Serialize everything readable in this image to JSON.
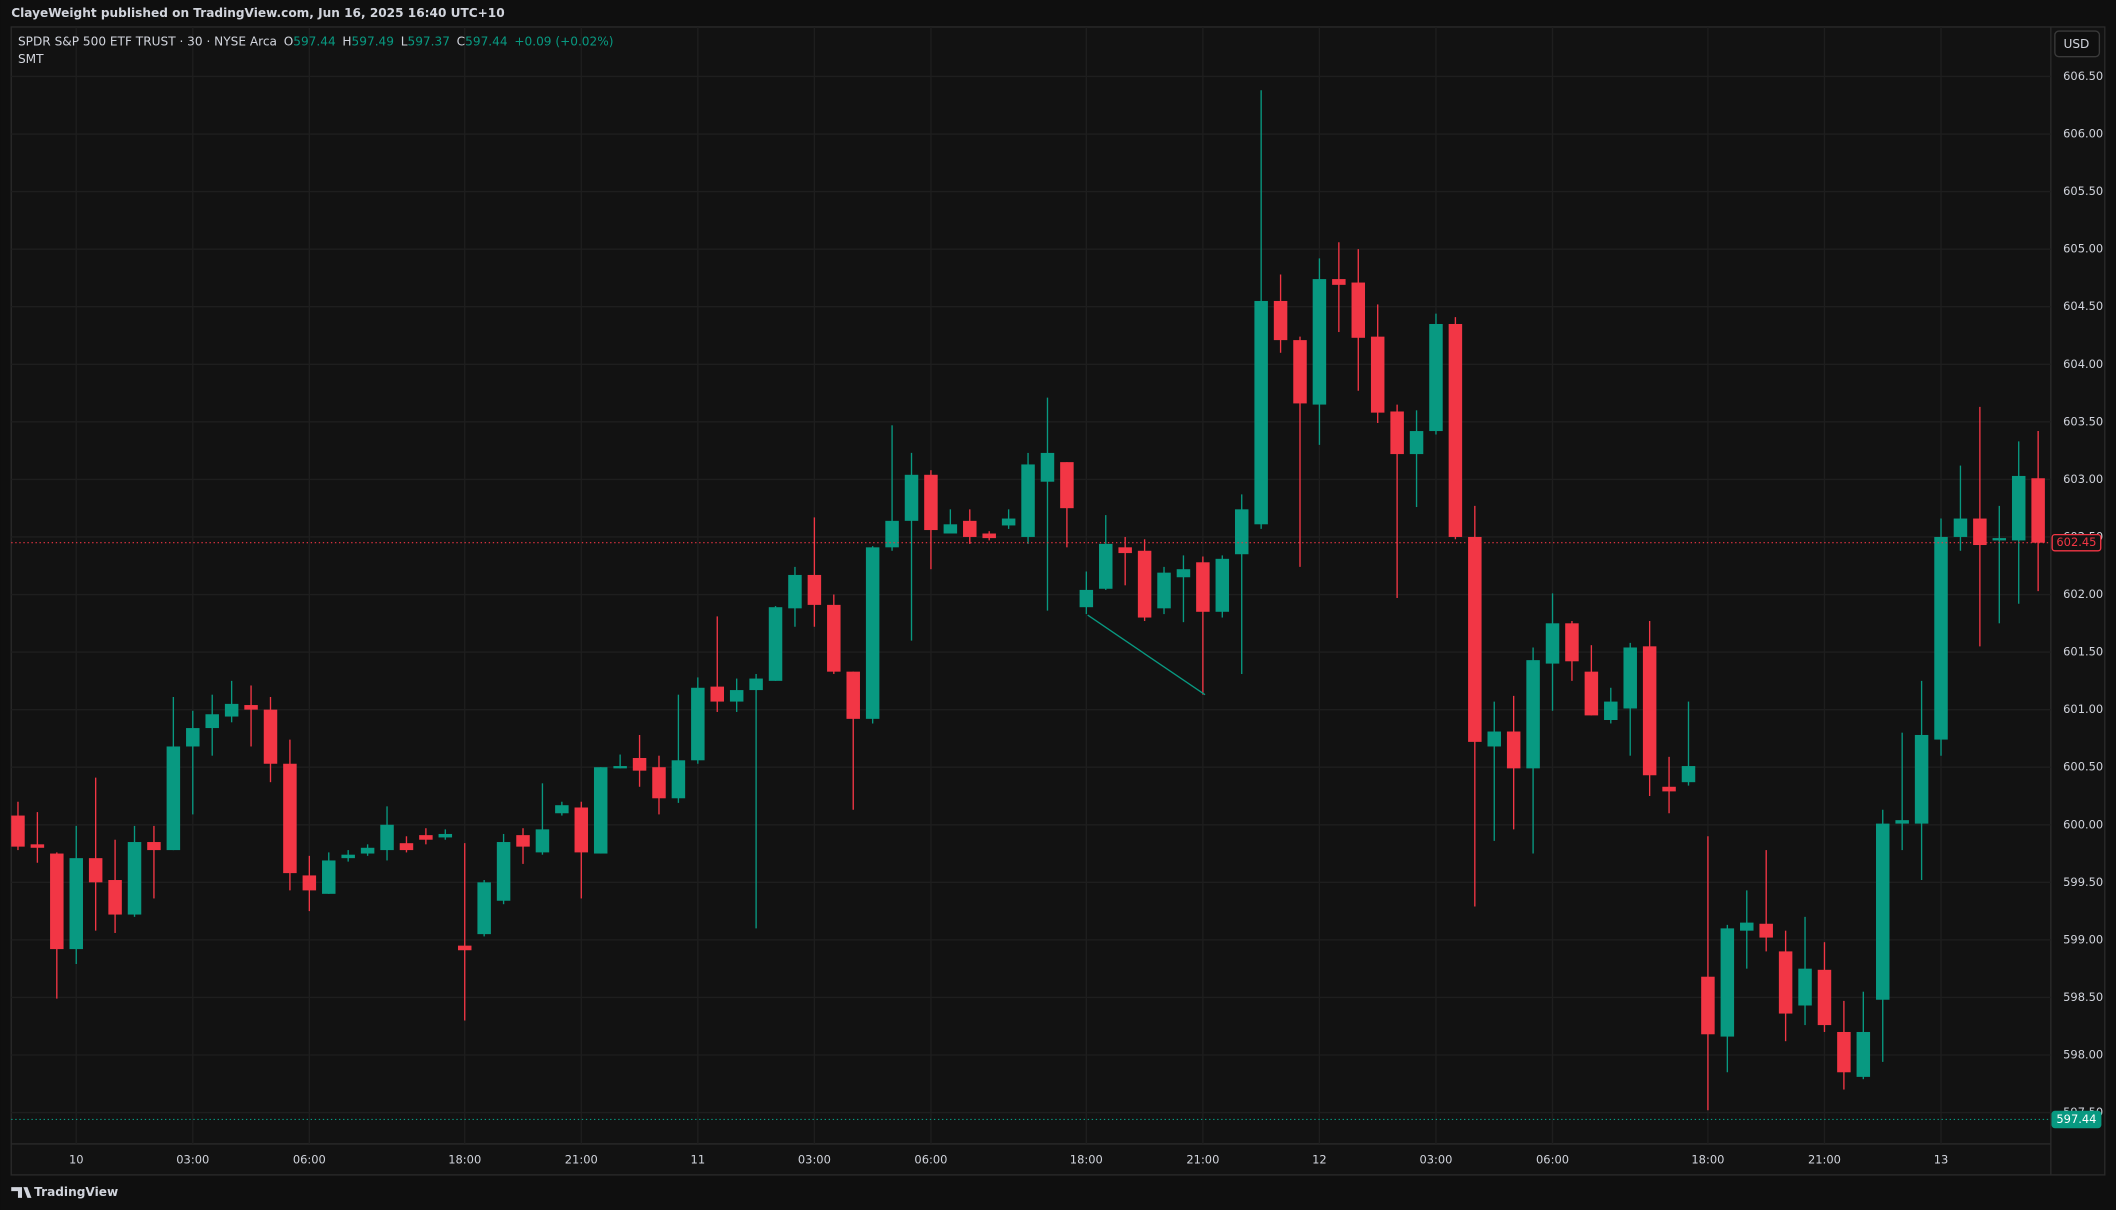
{
  "header": {
    "publisher": "ClayeWeight published on TradingView.com, Jun 16, 2025 16:40 UTC+10",
    "brand": "TradingView"
  },
  "chart_data": {
    "type": "candlestick",
    "symbol": "SPDR S&P 500 ETF TRUST · 30 · NYSE Arca",
    "ohlc_legend": [
      {
        "label": "O",
        "value": 597.44
      },
      {
        "label": "H",
        "value": 597.49
      },
      {
        "label": "L",
        "value": 597.37
      },
      {
        "label": "C",
        "value": 597.44
      }
    ],
    "change": "+0.09 (+0.02%)",
    "indicator": "SMT",
    "currency": "USD",
    "up_color": "#089981",
    "down_color": "#f23645",
    "grid": true,
    "categories": [
      null,
      null,
      null,
      "10",
      null,
      null,
      null,
      null,
      null,
      "03:00",
      null,
      null,
      null,
      null,
      null,
      "06:00",
      null,
      null,
      null,
      null,
      null,
      null,
      null,
      "18:00",
      null,
      null,
      null,
      null,
      null,
      "21:00",
      null,
      null,
      null,
      null,
      null,
      "11",
      null,
      null,
      null,
      null,
      null,
      "03:00",
      null,
      null,
      null,
      null,
      null,
      "06:00",
      null,
      null,
      null,
      null,
      null,
      null,
      null,
      "18:00",
      null,
      null,
      null,
      null,
      null,
      "21:00",
      null,
      null,
      null,
      null,
      null,
      "12",
      null,
      null,
      null,
      null,
      null,
      "03:00",
      null,
      null,
      null,
      null,
      null,
      "06:00",
      null,
      null,
      null,
      null,
      null,
      null,
      null,
      "18:00",
      null,
      null,
      null,
      null,
      null,
      "21:00",
      null,
      null,
      null,
      null,
      null,
      "13",
      null,
      null,
      null,
      null,
      null
    ],
    "open": [
      600.08,
      599.83,
      599.75,
      598.92,
      599.71,
      599.52,
      599.22,
      599.85,
      599.78,
      600.68,
      600.84,
      600.94,
      601.04,
      601.0,
      600.53,
      599.56,
      599.4,
      599.71,
      599.75,
      599.78,
      599.84,
      599.91,
      599.89,
      598.95,
      599.05,
      599.34,
      599.91,
      599.76,
      600.1,
      600.15,
      599.75,
      600.49,
      600.58,
      600.5,
      600.23,
      600.56,
      601.2,
      601.07,
      601.17,
      601.25,
      601.88,
      602.17,
      601.91,
      601.33,
      600.92,
      602.41,
      602.64,
      603.04,
      602.53,
      602.64,
      602.53,
      602.6,
      602.5,
      602.98,
      603.15,
      601.89,
      602.05,
      602.41,
      602.38,
      601.88,
      602.15,
      602.28,
      601.85,
      602.35,
      602.61,
      604.55,
      604.21,
      603.65,
      604.74,
      604.71,
      604.24,
      603.59,
      603.22,
      603.42,
      604.35,
      602.5,
      600.68,
      600.81,
      600.49,
      601.4,
      601.75,
      601.33,
      600.91,
      601.01,
      601.55,
      600.33,
      600.37,
      598.68,
      598.16,
      599.08,
      599.14,
      598.9,
      598.43,
      598.74,
      598.2,
      597.81,
      598.48,
      600.01,
      600.01,
      600.74,
      602.5,
      602.66,
      602.47,
      602.47,
      603.01
    ],
    "high": [
      600.2,
      600.11,
      599.76,
      599.99,
      600.41,
      599.87,
      599.99,
      599.99,
      601.11,
      600.99,
      601.13,
      601.25,
      601.21,
      601.11,
      600.74,
      599.73,
      599.76,
      599.78,
      599.83,
      600.16,
      599.9,
      599.97,
      599.96,
      599.84,
      599.52,
      599.92,
      599.97,
      600.36,
      600.2,
      600.2,
      600.5,
      600.61,
      600.78,
      600.6,
      601.13,
      601.28,
      601.81,
      601.27,
      601.31,
      601.9,
      602.24,
      602.67,
      602.0,
      601.33,
      602.42,
      603.47,
      603.23,
      603.08,
      602.74,
      602.74,
      602.55,
      602.74,
      603.23,
      603.71,
      603.15,
      602.2,
      602.69,
      602.5,
      602.48,
      602.24,
      602.34,
      602.33,
      602.34,
      602.87,
      606.38,
      604.78,
      604.24,
      604.92,
      605.06,
      605.0,
      604.52,
      603.65,
      603.6,
      604.44,
      604.41,
      602.77,
      601.07,
      601.12,
      601.54,
      602.01,
      601.77,
      601.56,
      601.19,
      601.58,
      601.77,
      600.59,
      601.07,
      599.9,
      599.13,
      599.43,
      599.78,
      599.08,
      599.2,
      598.98,
      598.47,
      598.55,
      600.13,
      600.8,
      601.25,
      602.66,
      603.12,
      603.63,
      602.77,
      603.33,
      603.42
    ],
    "low": [
      599.78,
      599.67,
      598.49,
      598.79,
      599.08,
      599.06,
      599.2,
      599.36,
      599.78,
      600.09,
      600.6,
      600.89,
      600.68,
      600.37,
      599.43,
      599.25,
      599.4,
      599.68,
      599.73,
      599.69,
      599.76,
      599.83,
      599.87,
      598.3,
      599.03,
      599.31,
      599.66,
      599.74,
      600.08,
      599.36,
      599.75,
      600.49,
      600.33,
      600.09,
      600.19,
      600.53,
      600.98,
      600.98,
      599.1,
      601.25,
      601.72,
      601.72,
      601.31,
      600.13,
      600.88,
      602.38,
      601.6,
      602.22,
      602.53,
      602.44,
      602.47,
      602.57,
      602.44,
      601.86,
      602.41,
      601.83,
      602.04,
      602.08,
      601.77,
      601.83,
      601.76,
      601.13,
      601.8,
      601.31,
      602.57,
      604.1,
      602.24,
      603.3,
      604.28,
      603.77,
      603.49,
      601.97,
      602.76,
      603.39,
      602.48,
      599.29,
      599.86,
      599.96,
      599.75,
      600.99,
      601.25,
      600.95,
      600.88,
      600.6,
      600.25,
      600.1,
      600.34,
      597.52,
      597.85,
      598.75,
      598.9,
      598.12,
      598.26,
      598.2,
      597.7,
      597.79,
      597.94,
      599.78,
      599.52,
      600.6,
      602.38,
      601.55,
      601.75,
      601.92,
      602.03
    ],
    "close": [
      599.81,
      599.8,
      598.92,
      599.71,
      599.5,
      599.22,
      599.85,
      599.78,
      600.68,
      600.84,
      600.96,
      601.05,
      601.0,
      600.53,
      599.58,
      599.43,
      599.69,
      599.74,
      599.8,
      600.0,
      599.78,
      599.87,
      599.92,
      598.91,
      599.5,
      599.85,
      599.81,
      599.96,
      600.17,
      599.76,
      600.5,
      600.51,
      600.47,
      600.23,
      600.56,
      601.19,
      601.07,
      601.17,
      601.27,
      601.89,
      602.17,
      601.91,
      601.33,
      600.92,
      602.41,
      602.64,
      603.04,
      602.56,
      602.61,
      602.5,
      602.49,
      602.66,
      603.13,
      603.23,
      602.75,
      602.04,
      602.44,
      602.36,
      601.8,
      602.19,
      602.22,
      601.85,
      602.31,
      602.74,
      604.55,
      604.21,
      603.66,
      604.74,
      604.69,
      604.23,
      603.58,
      603.22,
      603.42,
      604.35,
      602.5,
      600.72,
      600.81,
      600.49,
      601.43,
      601.75,
      601.42,
      600.95,
      601.07,
      601.54,
      600.43,
      600.29,
      600.51,
      598.18,
      599.1,
      599.15,
      599.02,
      598.36,
      598.75,
      598.26,
      597.85,
      598.2,
      600.01,
      600.04,
      600.78,
      602.5,
      602.66,
      602.43,
      602.49,
      603.03,
      602.45
    ],
    "ylim": [
      596.97,
      606.93
    ],
    "yticks": [
      {
        "value": 597.5,
        "label": "597.50"
      },
      {
        "value": 598,
        "label": "598.00"
      },
      {
        "value": 598.5,
        "label": "598.50"
      },
      {
        "value": 599,
        "label": "599.00"
      },
      {
        "value": 599.5,
        "label": "599.50"
      },
      {
        "value": 600,
        "label": "600.00"
      },
      {
        "value": 600.5,
        "label": "600.50"
      },
      {
        "value": 601,
        "label": "601.00"
      },
      {
        "value": 601.5,
        "label": "601.50"
      },
      {
        "value": 602,
        "label": "602.00"
      },
      {
        "value": 602.5,
        "label": "602.50"
      },
      {
        "value": 603,
        "label": "603.00"
      },
      {
        "value": 603.5,
        "label": "603.50"
      },
      {
        "value": 604,
        "label": "604.00"
      },
      {
        "value": 604.5,
        "label": "604.50"
      },
      {
        "value": 605,
        "label": "605.00"
      },
      {
        "value": 605.5,
        "label": "605.50"
      },
      {
        "value": 606,
        "label": "606.00"
      },
      {
        "value": 606.5,
        "label": "606.50"
      }
    ],
    "price_lines": [
      {
        "value": 602.45,
        "color": "#f23645"
      },
      {
        "value": 597.44,
        "color": "#089981"
      }
    ]
  }
}
